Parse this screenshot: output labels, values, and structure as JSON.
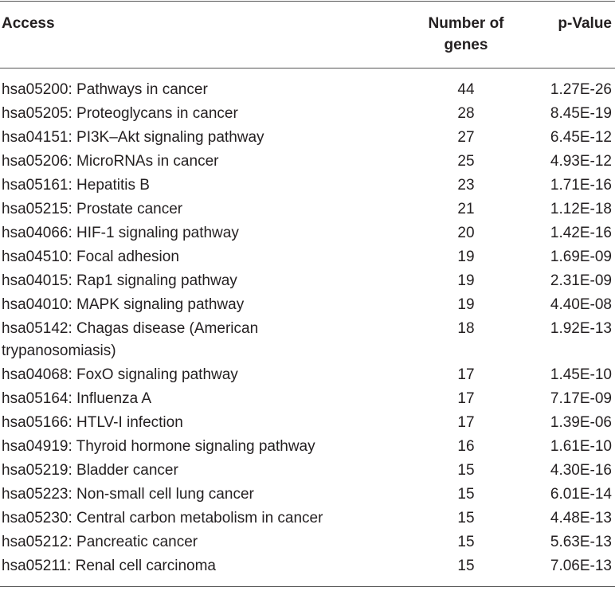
{
  "table": {
    "header": [
      "Access",
      "Number of genes",
      "p-Value"
    ],
    "rows": [
      [
        "hsa05200: Pathways in cancer",
        44,
        "1.27E-26"
      ],
      [
        "hsa05205: Proteoglycans in cancer",
        28,
        "8.45E-19"
      ],
      [
        "hsa04151: PI3K–Akt signaling pathway",
        27,
        "6.45E-12"
      ],
      [
        "hsa05206: MicroRNAs in cancer",
        25,
        "4.93E-12"
      ],
      [
        "hsa05161: Hepatitis B",
        23,
        "1.71E-16"
      ],
      [
        "hsa05215: Prostate cancer",
        21,
        "1.12E-18"
      ],
      [
        "hsa04066: HIF-1 signaling pathway",
        20,
        "1.42E-16"
      ],
      [
        "hsa04510: Focal adhesion",
        19,
        "1.69E-09"
      ],
      [
        "hsa04015: Rap1 signaling pathway",
        19,
        "2.31E-09"
      ],
      [
        "hsa04010: MAPK signaling pathway",
        19,
        "4.40E-08"
      ],
      [
        "hsa05142: Chagas disease (American trypanosomiasis)",
        18,
        "1.92E-13"
      ],
      [
        "hsa04068: FoxO signaling pathway",
        17,
        "1.45E-10"
      ],
      [
        "hsa05164: Influenza A",
        17,
        "7.17E-09"
      ],
      [
        "hsa05166: HTLV-I infection",
        17,
        "1.39E-06"
      ],
      [
        "hsa04919: Thyroid hormone signaling pathway",
        16,
        "1.61E-10"
      ],
      [
        "hsa05219: Bladder cancer",
        15,
        "4.30E-16"
      ],
      [
        "hsa05223: Non-small cell lung cancer",
        15,
        "6.01E-14"
      ],
      [
        "hsa05230: Central carbon metabolism in cancer",
        15,
        "4.48E-13"
      ],
      [
        "hsa05212: Pancreatic cancer",
        15,
        "5.63E-13"
      ],
      [
        "hsa05211: Renal cell carcinoma",
        15,
        "7.06E-13"
      ]
    ]
  }
}
